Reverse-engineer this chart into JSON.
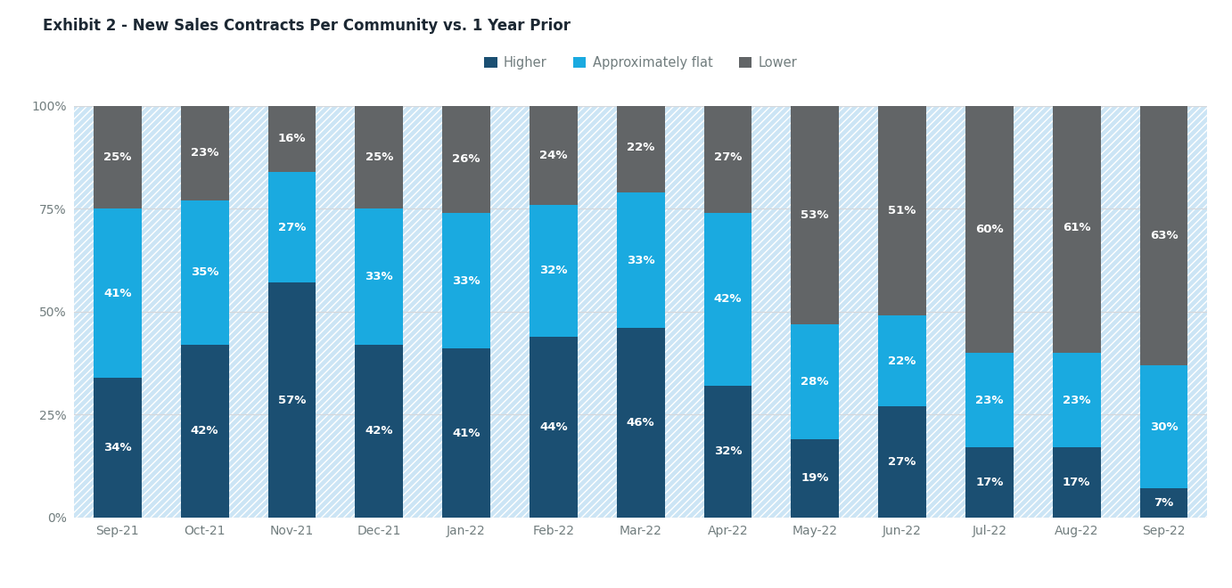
{
  "title": "Exhibit 2 - New Sales Contracts Per Community vs. 1 Year Prior",
  "categories": [
    "Sep-21",
    "Oct-21",
    "Nov-21",
    "Dec-21",
    "Jan-22",
    "Feb-22",
    "Mar-22",
    "Apr-22",
    "May-22",
    "Jun-22",
    "Jul-22",
    "Aug-22",
    "Sep-22"
  ],
  "higher": [
    34,
    42,
    57,
    42,
    41,
    44,
    46,
    32,
    19,
    27,
    17,
    17,
    7
  ],
  "approx_flat": [
    41,
    35,
    27,
    33,
    33,
    32,
    33,
    42,
    28,
    22,
    23,
    23,
    30
  ],
  "lower": [
    25,
    23,
    16,
    25,
    26,
    24,
    22,
    27,
    53,
    51,
    60,
    61,
    63
  ],
  "color_higher": "#1b4f72",
  "color_approx": "#1aaae0",
  "color_lower": "#626567",
  "color_hatch_bg": "#cce5f5",
  "color_hatch_line": "#ffffff",
  "background_color": "#ffffff",
  "grid_color": "#d5d8dc",
  "legend_labels": [
    "Higher",
    "Approximately flat",
    "Lower"
  ],
  "text_color_white": "#ffffff",
  "title_color": "#1c2833",
  "axis_label_color": "#717d7e",
  "bar_width": 0.55,
  "fontsize_pct": 9.5,
  "fontsize_tick": 10,
  "fontsize_title": 12,
  "fontsize_legend": 10.5
}
